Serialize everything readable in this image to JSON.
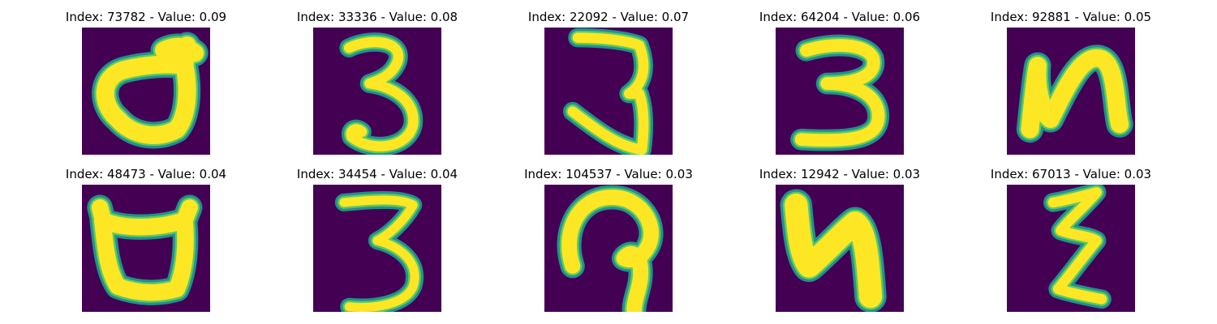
{
  "colors": {
    "background": "#440154",
    "stroke_edge": "#21918c",
    "stroke_mid": "#5ec962",
    "stroke_core": "#fde725"
  },
  "panels": [
    {
      "title": "Index: 73782 - Value: 0.09",
      "glyph": "d-loop"
    },
    {
      "title": "Index: 33336 - Value: 0.08",
      "glyph": "three"
    },
    {
      "title": "Index: 22092 - Value: 0.07",
      "glyph": "three-slanted"
    },
    {
      "title": "Index: 64204 - Value: 0.06",
      "glyph": "three-wide"
    },
    {
      "title": "Index: 92881 - Value: 0.05",
      "glyph": "n-shape"
    },
    {
      "title": "Index: 48473 - Value: 0.04",
      "glyph": "cup"
    },
    {
      "title": "Index: 34454 - Value: 0.04",
      "glyph": "three-thin"
    },
    {
      "title": "Index: 104537 - Value: 0.03",
      "glyph": "hook"
    },
    {
      "title": "Index: 12942 - Value: 0.03",
      "glyph": "n-bold"
    },
    {
      "title": "Index: 67013 - Value: 0.03",
      "glyph": "zig-zag"
    }
  ]
}
